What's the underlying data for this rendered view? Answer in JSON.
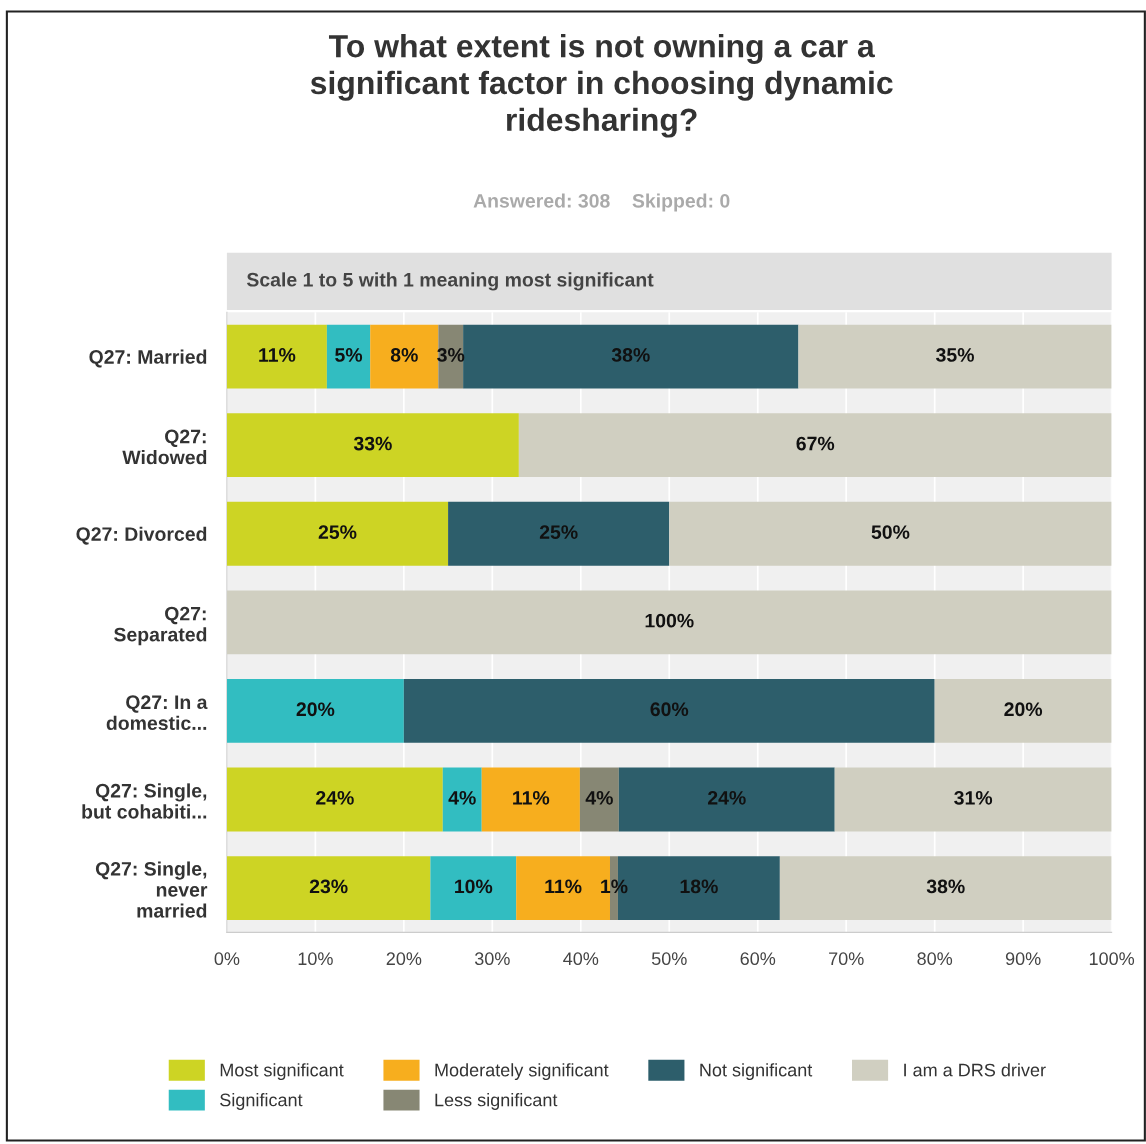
{
  "chart_data": {
    "type": "bar",
    "orientation": "horizontal",
    "stacked": true,
    "title": "To what extent is not owning a car a\nsignificant factor in choosing dynamic\nridesharing?",
    "subtitle": "Answered: 308    Skipped: 0",
    "annotations": [
      "Scale 1 to 5 with 1 meaning most significant"
    ],
    "categories": [
      "Q27: Married",
      "Q27:\nWidowed",
      "Q27: Divorced",
      "Q27:\nSeparated",
      "Q27: In a\ndomestic...",
      "Q27: Single,\nbut cohabiti...",
      "Q27: Single,\nnever\nmarried"
    ],
    "series": [
      {
        "name": "Most significant",
        "color": "#cdd424",
        "values": [
          11.3,
          33,
          25,
          null,
          null,
          24.4,
          23
        ],
        "value_labels": [
          "11%",
          "33%",
          "25%",
          null,
          null,
          "24%",
          "23%"
        ]
      },
      {
        "name": "Significant",
        "color": "#32bdc1",
        "values": [
          4.9,
          null,
          null,
          null,
          20,
          4.4,
          9.7
        ],
        "value_labels": [
          "5%",
          null,
          null,
          null,
          "20%",
          "4%",
          "10%"
        ]
      },
      {
        "name": "Moderately significant",
        "color": "#f7ae1e",
        "values": [
          7.7,
          null,
          null,
          null,
          null,
          11.1,
          10.6
        ],
        "value_labels": [
          "8%",
          null,
          null,
          null,
          null,
          "11%",
          "11%"
        ]
      },
      {
        "name": "Less significant",
        "color": "#878774",
        "values": [
          2.8,
          null,
          null,
          null,
          null,
          4.4,
          0.9
        ],
        "value_labels": [
          "3%",
          null,
          null,
          null,
          null,
          "4%",
          "1%"
        ]
      },
      {
        "name": "Not significant",
        "color": "#2d5e6b",
        "values": [
          37.9,
          null,
          25,
          null,
          60,
          24.4,
          18.3
        ],
        "value_labels": [
          "38%",
          null,
          "25%",
          null,
          "60%",
          "24%",
          "18%"
        ]
      },
      {
        "name": "I am a DRS driver",
        "color": "#d0cfc1",
        "values": [
          35.4,
          67,
          50,
          100,
          20,
          31.3,
          37.5
        ],
        "value_labels": [
          "35%",
          "67%",
          "50%",
          "100%",
          "20%",
          "31%",
          "38%"
        ]
      }
    ],
    "xlim": [
      0,
      100
    ],
    "xticks": [
      {
        "value": 0,
        "label": "0%"
      },
      {
        "value": 10,
        "label": "10%"
      },
      {
        "value": 20,
        "label": "20%"
      },
      {
        "value": 30,
        "label": "30%"
      },
      {
        "value": 40,
        "label": "40%"
      },
      {
        "value": 50,
        "label": "50%"
      },
      {
        "value": 60,
        "label": "60%"
      },
      {
        "value": 70,
        "label": "70%"
      },
      {
        "value": 80,
        "label": "80%"
      },
      {
        "value": 90,
        "label": "90%"
      },
      {
        "value": 100,
        "label": "100%"
      }
    ],
    "grid": "x",
    "legend": "bottom"
  }
}
